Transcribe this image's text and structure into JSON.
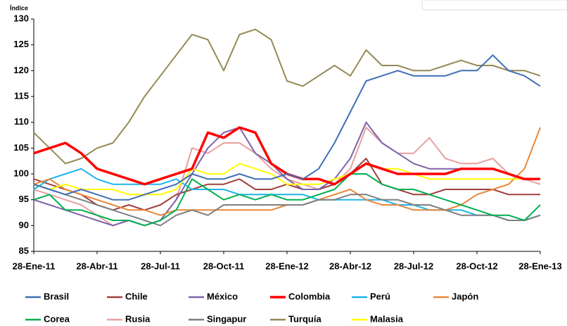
{
  "chart_data": {
    "type": "line",
    "y_label": "Índice",
    "categories": [
      "28-Ene-11",
      null,
      null,
      null,
      "28-Abr-11",
      null,
      null,
      null,
      "28-Jul-11",
      null,
      null,
      null,
      "28-Oct-11",
      null,
      null,
      null,
      "28-Ene-12",
      null,
      null,
      null,
      "28-Abr-12",
      null,
      null,
      null,
      "28-Jul-12",
      null,
      null,
      null,
      "28-Oct-12",
      null,
      null,
      null,
      "28-Ene-13"
    ],
    "ylim": [
      85,
      130
    ],
    "yticks": [
      85,
      90,
      95,
      100,
      105,
      110,
      115,
      120,
      125,
      130
    ],
    "grid": false,
    "legend": "bottom",
    "series": [
      {
        "name": "Brasil",
        "color": "#3f6fb5",
        "values": [
          98,
          97,
          96,
          97,
          96,
          95,
          95,
          96,
          97,
          98,
          100,
          99,
          99,
          100,
          99,
          99,
          100,
          99,
          101,
          106,
          112,
          118,
          119,
          120,
          119,
          119,
          119,
          120,
          120,
          123,
          120,
          119,
          117
        ]
      },
      {
        "name": "Chile",
        "color": "#a0403e",
        "values": [
          99,
          98,
          97,
          96,
          94,
          93,
          94,
          93,
          94,
          96,
          97,
          98,
          98,
          99,
          97,
          97,
          98,
          97,
          97,
          98,
          100,
          103,
          98,
          97,
          96,
          96,
          97,
          97,
          97,
          97,
          96,
          96,
          96
        ]
      },
      {
        "name": "México",
        "color": "#7f62a8",
        "values": [
          95,
          94,
          93,
          92,
          91,
          90,
          91,
          90,
          91,
          95,
          100,
          105,
          108,
          109,
          104,
          102,
          99,
          97,
          97,
          99,
          103,
          110,
          106,
          104,
          102,
          101,
          101,
          101,
          101,
          101,
          100,
          99,
          99
        ]
      },
      {
        "name": "Colombia",
        "color": "#ff0000",
        "values": [
          104,
          105,
          106,
          104,
          101,
          100,
          99,
          98,
          99,
          100,
          101,
          108,
          107,
          109,
          108,
          102,
          100,
          99,
          99,
          98,
          100,
          102,
          101,
          100,
          100,
          100,
          100,
          101,
          101,
          101,
          100,
          99,
          99
        ]
      },
      {
        "name": "Perú",
        "color": "#1fb5ea",
        "values": [
          97,
          99,
          100,
          101,
          99,
          98,
          98,
          98,
          98,
          99,
          97,
          97,
          97,
          96,
          96,
          96,
          96,
          96,
          95,
          95,
          95,
          95,
          95,
          94,
          94,
          93,
          93,
          93,
          92,
          92,
          91,
          91,
          92
        ]
      },
      {
        "name": "Japón",
        "color": "#e8873a",
        "values": [
          98,
          99,
          97,
          96,
          95,
          94,
          93,
          93,
          92,
          93,
          93,
          93,
          93,
          93,
          93,
          93,
          94,
          94,
          95,
          96,
          97,
          95,
          94,
          94,
          93,
          93,
          93,
          94,
          96,
          97,
          98,
          101,
          109
        ]
      },
      {
        "name": "Corea",
        "color": "#00b050",
        "values": [
          95,
          96,
          93,
          93,
          92,
          91,
          91,
          90,
          91,
          93,
          99,
          97,
          95,
          96,
          95,
          96,
          95,
          95,
          96,
          97,
          100,
          100,
          98,
          97,
          97,
          96,
          95,
          94,
          93,
          92,
          92,
          91,
          94
        ]
      },
      {
        "name": "Rusia",
        "color": "#e6a0a0",
        "values": [
          97,
          96,
          95,
          94,
          92,
          90,
          91,
          90,
          91,
          95,
          105,
          104,
          106,
          106,
          104,
          101,
          99,
          98,
          97,
          98,
          101,
          109,
          106,
          104,
          104,
          107,
          103,
          102,
          102,
          103,
          100,
          99,
          98
        ]
      },
      {
        "name": "Singapur",
        "color": "#7f7f7f",
        "values": [
          98,
          97,
          96,
          95,
          94,
          93,
          92,
          91,
          90,
          92,
          93,
          92,
          94,
          94,
          94,
          94,
          94,
          94,
          95,
          95,
          96,
          96,
          95,
          95,
          94,
          94,
          93,
          92,
          92,
          92,
          91,
          91,
          92
        ]
      },
      {
        "name": "Turquía",
        "color": "#948a54",
        "values": [
          108,
          105,
          102,
          103,
          105,
          106,
          110,
          115,
          119,
          123,
          127,
          126,
          120,
          127,
          128,
          126,
          118,
          117,
          119,
          121,
          119,
          124,
          121,
          121,
          120,
          120,
          121,
          122,
          121,
          121,
          120,
          120,
          119
        ]
      },
      {
        "name": "Malasia",
        "color": "#ffff00",
        "values": [
          98,
          97,
          98,
          97,
          97,
          97,
          96,
          96,
          96,
          97,
          101,
          100,
          100,
          102,
          101,
          100,
          98,
          98,
          98,
          99,
          100,
          102,
          101,
          101,
          100,
          99,
          99,
          99,
          99,
          99,
          99,
          99,
          99
        ]
      }
    ]
  }
}
